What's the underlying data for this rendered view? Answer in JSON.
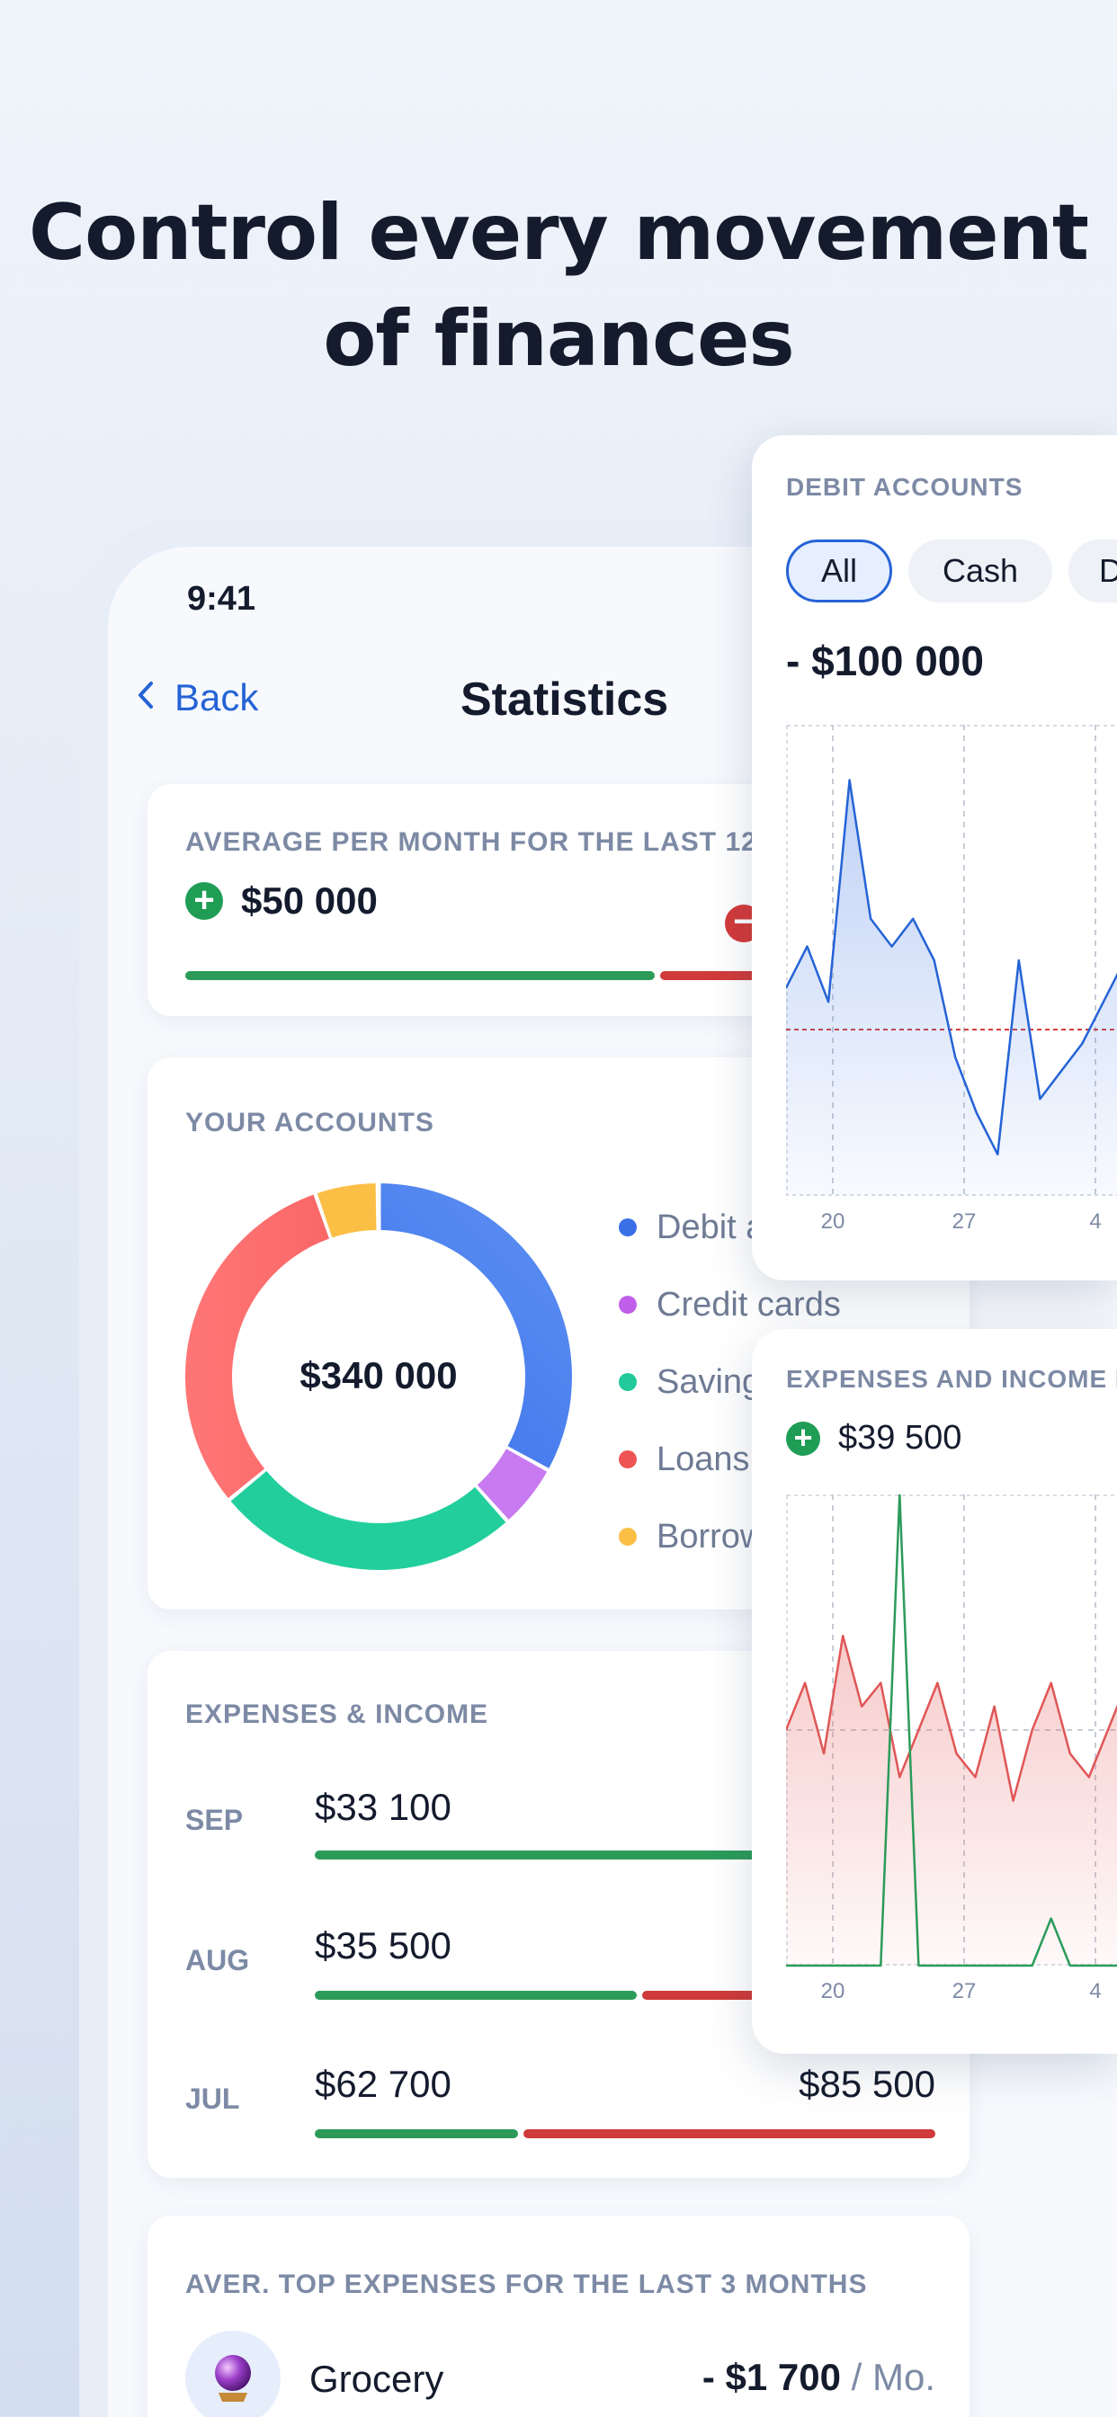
{
  "headline": {
    "line1": "Control every movement",
    "line2": "of finances"
  },
  "status_bar": {
    "time": "9:41"
  },
  "nav": {
    "back_label": "Back",
    "title": "Statistics"
  },
  "average_card": {
    "label": "AVERAGE PER MONTH FOR THE LAST 12",
    "income": "$50 000",
    "income_share": 0.75
  },
  "accounts_card": {
    "label": "YOUR ACCOUNTS",
    "total": "$340 000",
    "legend": [
      {
        "label": "Debit a",
        "color": "#3b6fe8"
      },
      {
        "label": "Credit cards",
        "color": "#c060ea"
      },
      {
        "label": "Saving",
        "color": "#22c99a"
      },
      {
        "label": "Loans",
        "color": "#ef5454"
      },
      {
        "label": "Borrow",
        "color": "#fbbf45"
      }
    ]
  },
  "expenses_income_card": {
    "label": "EXPENSES & INCOME",
    "months": [
      {
        "month": "SEP",
        "income": "$33 100",
        "expense": "",
        "income_share": 1.0
      },
      {
        "month": "AUG",
        "income": "$35 500",
        "expense": "",
        "income_share": 0.52
      },
      {
        "month": "JUL",
        "income": "$62 700",
        "expense": "$85 500",
        "income_share": 0.33
      }
    ]
  },
  "top_expenses_card": {
    "label": "AVER. TOP EXPENSES FOR THE LAST 3 MONTHS",
    "items": [
      {
        "name": "Grocery",
        "amount": "- $1 700",
        "period": "/ Mo.",
        "icon": "crystal-ball-icon"
      }
    ]
  },
  "debit_panel": {
    "label": "DEBIT ACCOUNTS",
    "filters": [
      "All",
      "Cash",
      "D"
    ],
    "active_filter": "All",
    "balance": "- $100 000"
  },
  "expenses_panel": {
    "label": "EXPENSES AND INCOME M",
    "income": "$39 500"
  },
  "chart_data": [
    {
      "type": "area",
      "title": "DEBIT ACCOUNTS",
      "x_ticks": [
        "20",
        "27",
        "4"
      ],
      "series": [
        {
          "color": "#2563d6",
          "values": [
            -97,
            -94,
            -98,
            -82,
            -92,
            -94,
            -92,
            -95,
            -102,
            -106,
            -109,
            -95,
            -105,
            -103,
            -101,
            -98,
            -95,
            -100
          ]
        }
      ],
      "ylim": [
        -112,
        -78
      ],
      "reference_line": -100,
      "grid": true
    },
    {
      "type": "area",
      "title": "EXPENSES AND INCOME M",
      "x_ticks": [
        "20",
        "27",
        "4"
      ],
      "series": [
        {
          "color": "#e05656",
          "values": [
            5,
            6,
            4.5,
            7,
            5.5,
            6,
            4,
            5,
            6,
            4.5,
            4,
            5.5,
            3.5,
            5,
            6,
            4.5,
            4,
            5,
            6,
            7
          ]
        },
        {
          "color": "#2c9b5a",
          "values": [
            0,
            0,
            0,
            0,
            0,
            0,
            10,
            0,
            0,
            0,
            0,
            0,
            0,
            0,
            1,
            0,
            0,
            0,
            0,
            0
          ]
        }
      ],
      "ylim": [
        0,
        10
      ],
      "grid": true
    }
  ]
}
